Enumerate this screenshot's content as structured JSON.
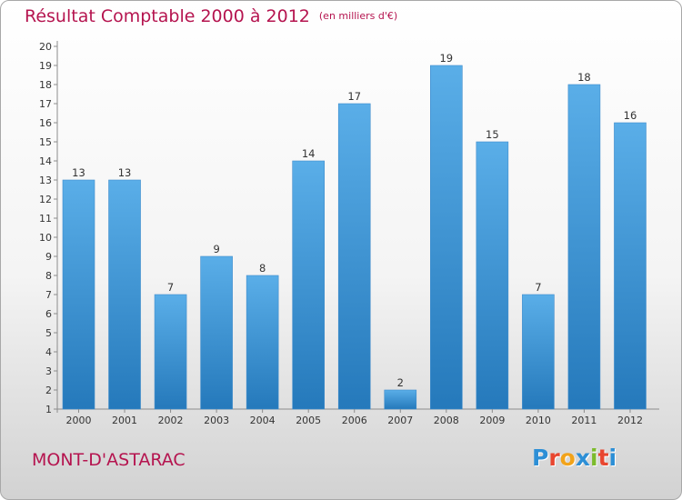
{
  "title": "Résultat Comptable 2000 à 2012",
  "subtitle": "(en milliers d'€)",
  "commune": "MONT-D'ASTARAC",
  "logo": {
    "text": "Proxiti",
    "letter_colors": [
      "#2d8fd6",
      "#e8462f",
      "#f2a31a",
      "#2d8fd6",
      "#7cbb2c",
      "#e8462f",
      "#2d8fd6"
    ]
  },
  "colors": {
    "title": "#b5144f",
    "bar_top": "#5aaee8",
    "bar_bottom": "#2579bb",
    "label": "#333333"
  },
  "chart_data": {
    "type": "bar",
    "title": "Résultat Comptable 2000 à 2012",
    "subtitle": "(en milliers d'€)",
    "categories": [
      "2000",
      "2001",
      "2002",
      "2003",
      "2004",
      "2005",
      "2006",
      "2007",
      "2008",
      "2009",
      "2010",
      "2011",
      "2012"
    ],
    "values": [
      13,
      13,
      7,
      9,
      8,
      14,
      17,
      2,
      19,
      15,
      7,
      18,
      16
    ],
    "data_labels": [
      "13",
      "13",
      "7",
      "9",
      "8",
      "14",
      "17",
      "2",
      "19",
      "15",
      "7",
      "18",
      "16"
    ],
    "yticks": [
      "1",
      "2",
      "3",
      "4",
      "5",
      "6",
      "7",
      "8",
      "9",
      "10",
      "11",
      "12",
      "13",
      "14",
      "15",
      "16",
      "17",
      "18",
      "19",
      "20"
    ],
    "ylim": [
      1,
      20
    ],
    "grid": false,
    "legend": "none"
  }
}
